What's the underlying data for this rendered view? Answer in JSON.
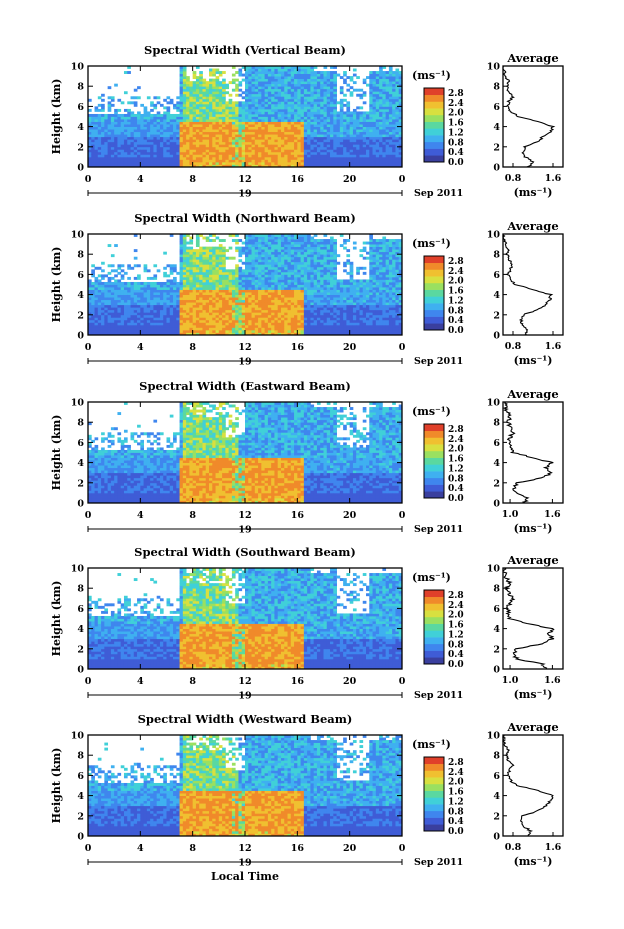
{
  "panels": [
    {
      "title": "Spectral Width (Vertical Beam)",
      "avg_title": "Average",
      "date_label": "19",
      "avg_xticks": [
        "0.8",
        "1.6"
      ],
      "avg_xlim": [
        0.6,
        1.8
      ]
    },
    {
      "title": "Spectral Width (Northward Beam)",
      "avg_title": "Average",
      "date_label": "19",
      "avg_xticks": [
        "0.8",
        "1.6"
      ],
      "avg_xlim": [
        0.6,
        1.8
      ]
    },
    {
      "title": "Spectral Width (Eastward Beam)",
      "avg_title": "Average",
      "date_label": "19",
      "avg_xticks": [
        "1.0",
        "1.6"
      ],
      "avg_xlim": [
        0.9,
        1.75
      ]
    },
    {
      "title": "Spectral Width (Southward Beam)",
      "avg_title": "Average",
      "date_label": "19",
      "avg_xticks": [
        "1.0",
        "1.6"
      ],
      "avg_xlim": [
        0.9,
        1.75
      ]
    },
    {
      "title": "Spectral Width (Westward Beam)",
      "avg_title": "Average",
      "date_label": "19",
      "avg_xticks": [
        "0.8",
        "1.6"
      ],
      "avg_xlim": [
        0.6,
        1.8
      ]
    }
  ],
  "ylabel": "Height (km)",
  "xlabel": "Local Time",
  "month_label": "Sep 2011",
  "cb_unit": "(ms⁻¹)",
  "avg_unit": "(ms⁻¹)",
  "x_ticks": [
    "0",
    "4",
    "8",
    "12",
    "16",
    "20",
    "0"
  ],
  "y_ticks": [
    "0",
    "2",
    "4",
    "6",
    "8",
    "10"
  ],
  "cb_ticks": [
    "0.0",
    "0.4",
    "0.8",
    "1.2",
    "1.6",
    "2.0",
    "2.4",
    "2.8"
  ],
  "colormap": [
    "#3a3f9e",
    "#3f5cd6",
    "#3f86ee",
    "#3fb0f0",
    "#40d0d8",
    "#5ad8a0",
    "#9ae060",
    "#d8e040",
    "#f0c030",
    "#f08a2a",
    "#e0402a"
  ],
  "chart_data": [
    {
      "type": "heatmap",
      "title": "Spectral Width (Vertical Beam)",
      "xlabel": "",
      "ylabel": "Height (km)",
      "xlim": [
        0,
        24
      ],
      "ylim": [
        0,
        10
      ],
      "colorbar": {
        "range": [
          0.0,
          3.0
        ],
        "ticks": [
          0.0,
          0.4,
          0.8,
          1.2,
          1.6,
          2.0,
          2.4,
          2.8
        ]
      },
      "average_profile": {
        "x_range": [
          0.6,
          1.8
        ],
        "heights": [
          0,
          0.5,
          1,
          1.5,
          2,
          2.5,
          3,
          3.5,
          4,
          4.5,
          5,
          5.5,
          6,
          6.5,
          7,
          7.5,
          8,
          8.5,
          9,
          9.5,
          10
        ],
        "values": [
          1.1,
          1.2,
          1.05,
          1.0,
          1.05,
          1.3,
          1.4,
          1.55,
          1.6,
          1.3,
          0.9,
          0.75,
          0.7,
          0.72,
          0.8,
          0.7,
          0.68,
          0.72,
          0.65,
          0.62,
          0.6
        ]
      }
    },
    {
      "type": "heatmap",
      "title": "Spectral Width (Northward Beam)",
      "xlabel": "",
      "ylabel": "Height (km)",
      "xlim": [
        0,
        24
      ],
      "ylim": [
        0,
        10
      ],
      "colorbar": {
        "range": [
          0.0,
          3.0
        ],
        "ticks": [
          0.0,
          0.4,
          0.8,
          1.2,
          1.6,
          2.0,
          2.4,
          2.8
        ]
      },
      "average_profile": {
        "x_range": [
          0.6,
          1.8
        ],
        "heights": [
          0,
          0.5,
          1,
          1.5,
          2,
          2.5,
          3,
          3.5,
          4,
          4.5,
          5,
          5.5,
          6,
          6.5,
          7,
          7.5,
          8,
          8.5,
          9,
          9.5,
          10
        ],
        "values": [
          1.05,
          1.1,
          1.0,
          0.95,
          1.0,
          1.3,
          1.45,
          1.55,
          1.55,
          1.2,
          0.85,
          0.75,
          0.7,
          0.75,
          0.8,
          0.72,
          0.68,
          0.7,
          0.66,
          0.62,
          0.6
        ]
      }
    },
    {
      "type": "heatmap",
      "title": "Spectral Width (Eastward Beam)",
      "xlabel": "",
      "ylabel": "Height (km)",
      "xlim": [
        0,
        24
      ],
      "ylim": [
        0,
        10
      ],
      "colorbar": {
        "range": [
          0.0,
          3.0
        ],
        "ticks": [
          0.0,
          0.4,
          0.8,
          1.2,
          1.6,
          2.0,
          2.4,
          2.8
        ]
      },
      "average_profile": {
        "x_range": [
          0.9,
          1.75
        ],
        "heights": [
          0,
          0.5,
          1,
          1.5,
          2,
          2.5,
          3,
          3.5,
          4,
          4.5,
          5,
          5.5,
          6,
          6.5,
          7,
          7.5,
          8,
          8.5,
          9,
          9.5,
          10
        ],
        "values": [
          1.2,
          1.25,
          1.1,
          1.05,
          1.1,
          1.45,
          1.6,
          1.5,
          1.6,
          1.3,
          1.05,
          1.0,
          0.98,
          1.0,
          1.05,
          1.0,
          0.98,
          1.0,
          0.96,
          0.94,
          0.92
        ]
      }
    },
    {
      "type": "heatmap",
      "title": "Spectral Width (Southward Beam)",
      "xlabel": "",
      "ylabel": "Height (km)",
      "xlim": [
        0,
        24
      ],
      "ylim": [
        0,
        10
      ],
      "colorbar": {
        "range": [
          0.0,
          3.0
        ],
        "ticks": [
          0.0,
          0.4,
          0.8,
          1.2,
          1.6,
          2.0,
          2.4,
          2.8
        ]
      },
      "average_profile": {
        "x_range": [
          0.9,
          1.75
        ],
        "heights": [
          0,
          0.5,
          1,
          1.5,
          2,
          2.5,
          3,
          3.5,
          4,
          4.5,
          5,
          5.5,
          6,
          6.5,
          7,
          7.5,
          8,
          8.5,
          9,
          9.5,
          10
        ],
        "values": [
          1.5,
          1.45,
          1.1,
          1.05,
          1.1,
          1.45,
          1.6,
          1.55,
          1.6,
          1.25,
          1.0,
          0.98,
          0.96,
          1.0,
          1.05,
          0.98,
          0.96,
          1.0,
          0.95,
          0.93,
          0.92
        ]
      }
    },
    {
      "type": "heatmap",
      "title": "Spectral Width (Westward Beam)",
      "xlabel": "Local Time",
      "ylabel": "Height (km)",
      "xlim": [
        0,
        24
      ],
      "ylim": [
        0,
        10
      ],
      "colorbar": {
        "range": [
          0.0,
          3.0
        ],
        "ticks": [
          0.0,
          0.4,
          0.8,
          1.2,
          1.6,
          2.0,
          2.4,
          2.8
        ]
      },
      "average_profile": {
        "x_range": [
          0.6,
          1.8
        ],
        "heights": [
          0,
          0.5,
          1,
          1.5,
          2,
          2.5,
          3,
          3.5,
          4,
          4.5,
          5,
          5.5,
          6,
          6.5,
          7,
          7.5,
          8,
          8.5,
          9,
          9.5,
          10
        ],
        "values": [
          1.1,
          1.15,
          1.0,
          0.95,
          1.0,
          1.3,
          1.45,
          1.55,
          1.6,
          1.3,
          0.88,
          0.75,
          0.7,
          0.72,
          0.8,
          0.7,
          0.68,
          0.72,
          0.65,
          0.62,
          0.6
        ]
      }
    }
  ]
}
